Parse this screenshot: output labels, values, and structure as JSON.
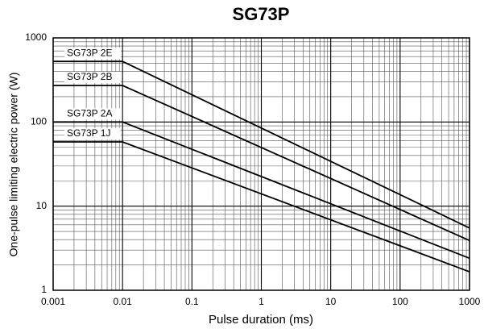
{
  "chart_data": {
    "type": "line",
    "title": "SG73P",
    "x_label": "Pulse duration (ms)",
    "y_label": "One-pulse limiting electric power (W)",
    "x": [
      0.001,
      0.01,
      1000
    ],
    "series": [
      {
        "name": "SG73P 2E",
        "color": "#000000",
        "values": [
          525,
          525,
          5.5
        ]
      },
      {
        "name": "SG73P 2B",
        "color": "#000000",
        "values": [
          272,
          272,
          3.9
        ]
      },
      {
        "name": "SG73P 2A",
        "color": "#000000",
        "values": [
          100,
          100,
          2.4
        ]
      },
      {
        "name": "SG73P 1J",
        "color": "#000000",
        "values": [
          58,
          58,
          1.66
        ]
      }
    ],
    "xlim": [
      0.001,
      1000
    ],
    "ylim": [
      1,
      1000
    ],
    "xticks": [
      0.001,
      0.01,
      0.1,
      1,
      10,
      100,
      1000
    ],
    "yticks": [
      1,
      10,
      100,
      1000
    ],
    "x_log": true,
    "y_log": true,
    "grid": true,
    "minor_grid": true
  }
}
